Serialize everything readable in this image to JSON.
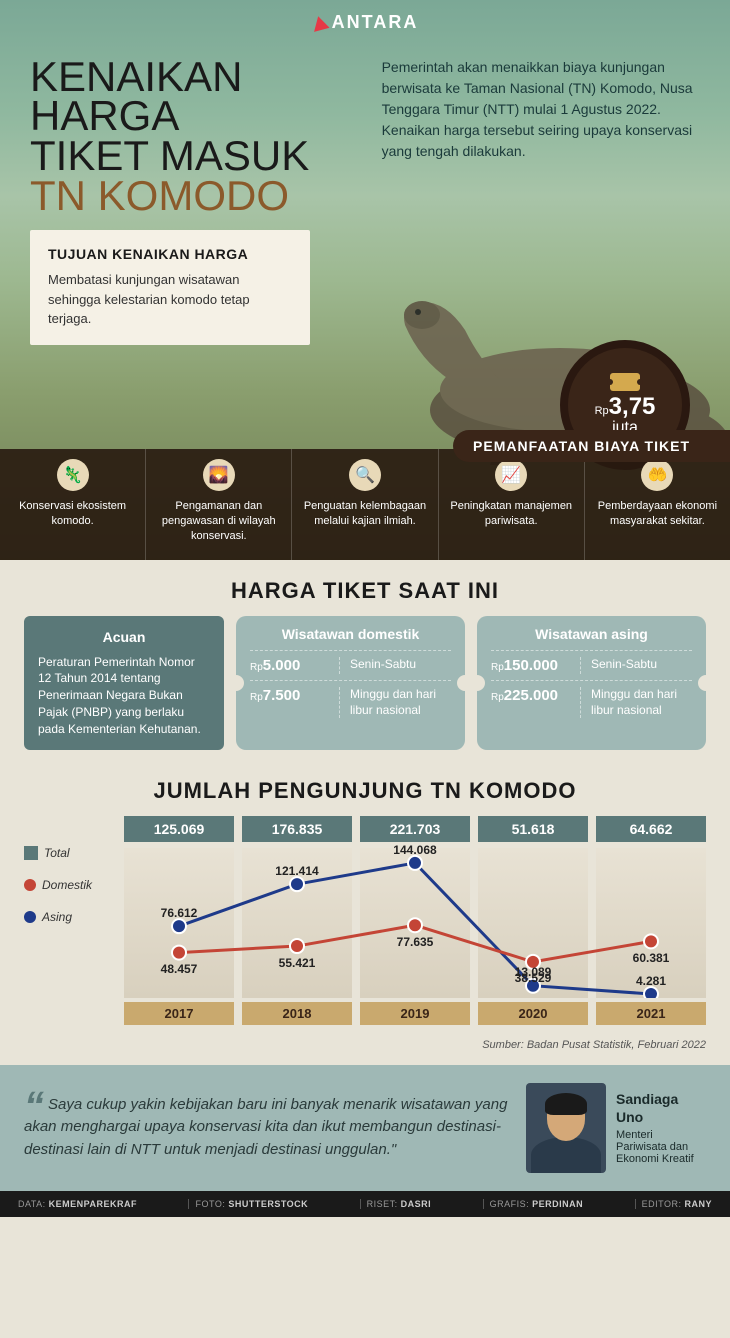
{
  "logo": "ANTARA",
  "title": {
    "line1": "KENAIKAN HARGA",
    "line2": "TIKET MASUK",
    "line3": "TN KOMODO"
  },
  "intro": "Pemerintah akan menaikkan biaya kunjungan berwisata ke Taman Nasional (TN) Komodo, Nusa Tenggara Timur (NTT) mulai 1 Agustus 2022. Kenaikan harga tersebut seiring upaya konservasi yang tengah dilakukan.",
  "goal": {
    "title": "TUJUAN KENAIKAN HARGA",
    "text": "Membatasi kunjungan wisatawan sehingga kelestarian komodo tetap terjaga."
  },
  "price": {
    "currency": "Rp",
    "value": "3,75",
    "unit": "juta"
  },
  "usage": {
    "header": "PEMANFAATAN BIAYA TIKET",
    "items": [
      {
        "icon": "🦎",
        "text": "Konservasi ekosistem komodo."
      },
      {
        "icon": "🌄",
        "text": "Pengamanan dan pengawasan di wilayah konservasi."
      },
      {
        "icon": "🔍",
        "text": "Penguatan kelembagaan melalui kajian ilmiah."
      },
      {
        "icon": "📈",
        "text": "Peningkatan manajemen pariwisata."
      },
      {
        "icon": "🤲",
        "text": "Pemberdayaan ekonomi masyarakat sekitar."
      }
    ]
  },
  "current": {
    "title": "HARGA TIKET SAAT INI",
    "ref": {
      "title": "Acuan",
      "text": "Peraturan Pemerintah Nomor 12 Tahun 2014 tentang Penerimaan Negara Bukan Pajak (PNBP) yang berlaku pada Kementerian Kehutanan."
    },
    "domestic": {
      "title": "Wisatawan domestik",
      "rows": [
        {
          "price": "5.000",
          "day": "Senin-Sabtu"
        },
        {
          "price": "7.500",
          "day": "Minggu dan hari libur nasional"
        }
      ]
    },
    "foreign": {
      "title": "Wisatawan asing",
      "rows": [
        {
          "price": "150.000",
          "day": "Senin-Sabtu"
        },
        {
          "price": "225.000",
          "day": "Minggu dan hari libur nasional"
        }
      ]
    }
  },
  "visitors": {
    "title": "JUMLAH PENGUNJUNG TN KOMODO",
    "legend": {
      "total": "Total",
      "domestic": "Domestik",
      "foreign": "Asing"
    },
    "colors": {
      "total": "#5a7878",
      "domestic": "#c44536",
      "foreign": "#1e3a8a",
      "year_bg": "#e0dac8",
      "year_label_bg": "#c9a96e"
    },
    "ymax": 160000,
    "years": [
      {
        "year": "2017",
        "total": "125.069",
        "domestic": 48457,
        "foreign": 76612,
        "d_label": "48.457",
        "f_label": "76.612"
      },
      {
        "year": "2018",
        "total": "176.835",
        "domestic": 55421,
        "foreign": 121414,
        "d_label": "55.421",
        "f_label": "121.414"
      },
      {
        "year": "2019",
        "total": "221.703",
        "domestic": 77635,
        "foreign": 144068,
        "d_label": "77.635",
        "f_label": "144.068"
      },
      {
        "year": "2020",
        "total": "51.618",
        "domestic": 38529,
        "foreign": 13089,
        "d_label": "38.529",
        "f_label": "13.089"
      },
      {
        "year": "2021",
        "total": "64.662",
        "domestic": 60381,
        "foreign": 4281,
        "d_label": "60.381",
        "f_label": "4.281"
      }
    ],
    "source": "Sumber: Badan Pusat Statistik, Februari 2022"
  },
  "quote": {
    "text": "Saya cukup yakin kebijakan baru ini banyak menarik wisatawan yang akan menghargai upaya konservasi kita dan ikut membangun destinasi-destinasi lain di NTT untuk menjadi destinasi unggulan.\"",
    "name": "Sandiaga Uno",
    "role": "Menteri Pariwisata dan Ekonomi Kreatif"
  },
  "credits": [
    {
      "k": "DATA",
      "v": "KEMENPAREKRAF"
    },
    {
      "k": "FOTO",
      "v": "SHUTTERSTOCK"
    },
    {
      "k": "RISET",
      "v": "DASRI"
    },
    {
      "k": "GRAFIS",
      "v": "PERDINAN"
    },
    {
      "k": "EDITOR",
      "v": "RANY"
    }
  ]
}
